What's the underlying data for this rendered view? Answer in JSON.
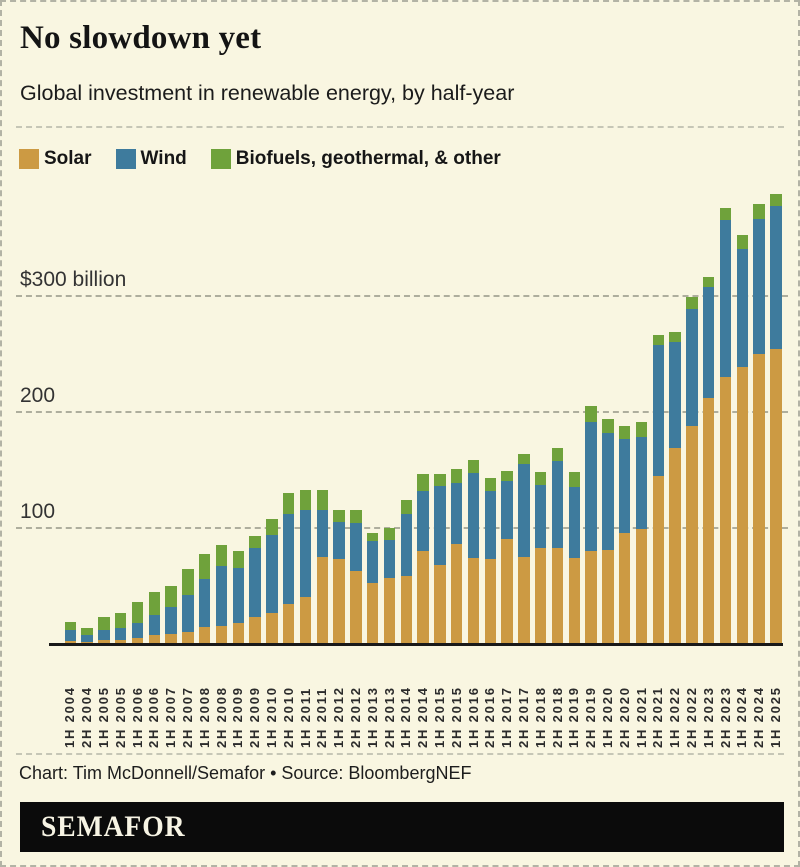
{
  "header": {
    "title": "No slowdown yet",
    "subtitle": "Global investment in renewable energy, by half-year"
  },
  "legend": {
    "items": [
      {
        "label": "Solar",
        "color": "#cc9a43"
      },
      {
        "label": "Wind",
        "color": "#3e7b9d"
      },
      {
        "label": "Biofuels, geothermal, & other",
        "color": "#6fa23b"
      }
    ]
  },
  "chart_data": {
    "type": "bar",
    "stacked": true,
    "title": "No slowdown yet",
    "subtitle": "Global investment in renewable energy, by half-year",
    "unit": "$ billion",
    "legend_position": "top",
    "grid": "horizontal-dashed",
    "categories": [
      "1H 2004",
      "2H 2004",
      "1H 2005",
      "2H 2005",
      "1H 2006",
      "2H 2006",
      "1H 2007",
      "2H 2007",
      "1H 2008",
      "2H 2008",
      "1H 2009",
      "2H 2009",
      "1H 2010",
      "2H 2010",
      "1H 2011",
      "2H 2011",
      "1H 2012",
      "2H 2012",
      "1H 2013",
      "2H 2013",
      "1H 2014",
      "2H 2014",
      "1H 2015",
      "2H 2015",
      "1H 2016",
      "2H 2016",
      "1H 2017",
      "2H 2017",
      "1H 2018",
      "2H 2018",
      "1H 2019",
      "2H 2019",
      "1H 2020",
      "2H 2020",
      "1H 2021",
      "2H 2021",
      "1H 2022",
      "2H 2022",
      "1H 2023",
      "2H 2023",
      "1H 2024",
      "2H 2024",
      "1H 2025"
    ],
    "series": [
      {
        "name": "Solar",
        "color": "#cc9a43",
        "values": [
          1.5,
          1,
          2.5,
          3,
          4.5,
          6.5,
          7.5,
          9.5,
          14,
          15,
          17.5,
          22,
          26,
          34,
          39.5,
          74,
          72.5,
          62,
          52,
          56,
          58,
          79,
          67.5,
          85,
          73.5,
          72,
          90,
          74,
          82,
          82,
          73,
          79,
          80,
          94.5,
          98,
          144,
          168,
          187,
          211,
          229,
          238,
          249,
          253.5
        ]
      },
      {
        "name": "Wind",
        "color": "#3e7b9d",
        "values": [
          9.5,
          5.5,
          9,
          9.5,
          13,
          17.5,
          23.5,
          32,
          41.5,
          51.5,
          47,
          59.5,
          67,
          77.5,
          75,
          41,
          31.5,
          41,
          35.5,
          32.5,
          53.5,
          52,
          68,
          52.5,
          72.5,
          58.5,
          49.5,
          80.5,
          54.5,
          75,
          61,
          111.5,
          101,
          81.5,
          79.5,
          113,
          91,
          101,
          95.5,
          135.5,
          101.5,
          116.5,
          122.5
        ]
      },
      {
        "name": "Biofuels, geothermal, & other",
        "color": "#6fa23b",
        "values": [
          7.5,
          6.5,
          11,
          13,
          17.5,
          20,
          18,
          22.5,
          21,
          18,
          15,
          11,
          14,
          18,
          17.5,
          16.5,
          10.5,
          12,
          7.5,
          10.5,
          11.5,
          15,
          10,
          12,
          12,
          12,
          8.5,
          8,
          11,
          11,
          13.5,
          14,
          12,
          11,
          12.5,
          8,
          9,
          10,
          8.5,
          10.5,
          12,
          12.5,
          10.5
        ]
      }
    ],
    "y_axis": {
      "tick_values": [
        100,
        200,
        300
      ],
      "tick_labels": [
        "100",
        "200",
        "$300 billion"
      ],
      "ylim": [
        0,
        392
      ]
    }
  },
  "footer": {
    "credit": "Chart: Tim McDonnell/Semafor • Source: BloombergNEF",
    "logo_text": "SEMAFOR"
  },
  "colors": {
    "background": "#f9f6e1",
    "axis": "#191919",
    "solar": "#cc9a43",
    "wind": "#3e7b9d",
    "other": "#6fa23b"
  }
}
